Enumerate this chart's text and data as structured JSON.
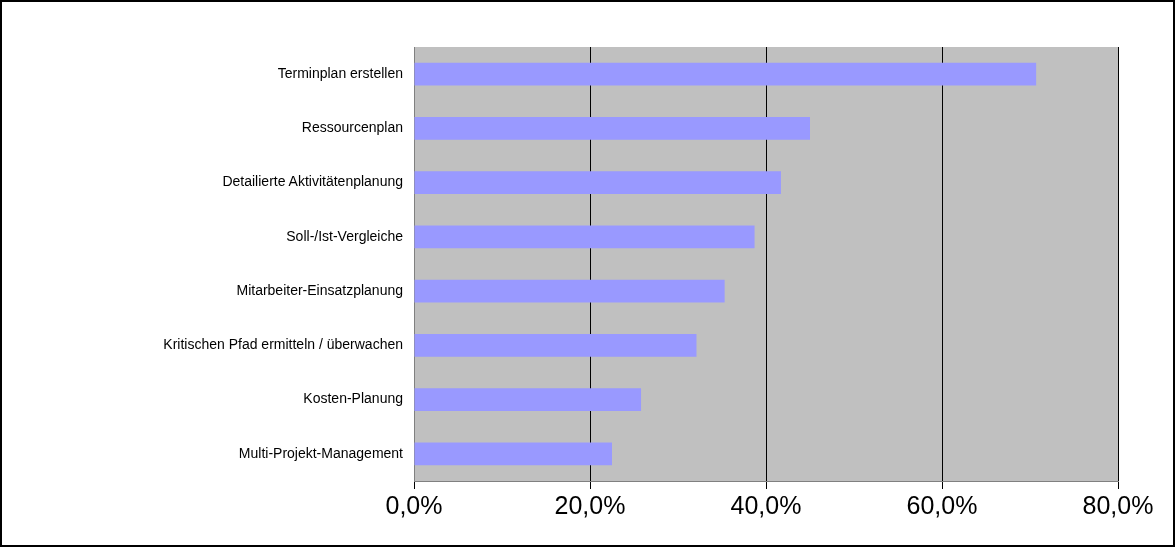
{
  "chart_data": {
    "type": "bar",
    "orientation": "horizontal",
    "categories": [
      "Terminplan erstellen",
      "Ressourcenplan",
      "Detailierte Aktivitätenplanung",
      "Soll-/Ist-Vergleiche",
      "Mitarbeiter-Einsatzplanung",
      "Kritischen Pfad ermitteln / überwachen",
      "Kosten-Planung",
      "Multi-Projekt-Management"
    ],
    "values": [
      70.7,
      45.0,
      41.7,
      38.7,
      35.3,
      32.1,
      25.8,
      22.5
    ],
    "color": "#9999ff",
    "xlim": [
      0,
      80
    ],
    "xticks": [
      {
        "value": 0,
        "label": "0,0%"
      },
      {
        "value": 20,
        "label": "20,0%"
      },
      {
        "value": 40,
        "label": "40,0%"
      },
      {
        "value": 60,
        "label": "60,0%"
      },
      {
        "value": 80,
        "label": "80,0%"
      }
    ],
    "grid": "x",
    "legend": false
  }
}
